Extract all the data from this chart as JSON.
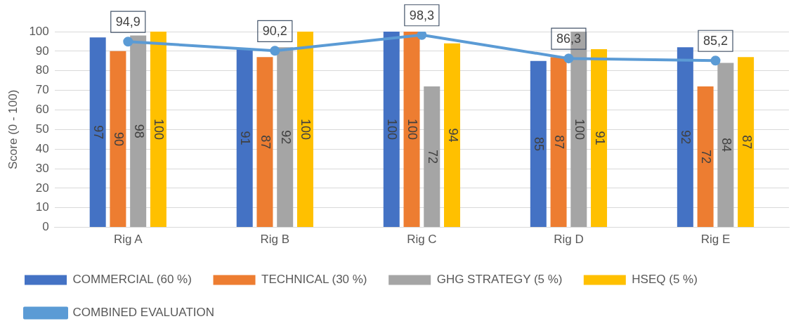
{
  "chart_data": {
    "type": "bar",
    "ylabel": "Score (0 - 100)",
    "categories": [
      "Rig A",
      "Rig B",
      "Rig C",
      "Rig D",
      "Rig E"
    ],
    "series": [
      {
        "name": "COMMERCIAL (60 %)",
        "color": "#4472c4",
        "values": [
          97,
          91,
          100,
          85,
          92
        ]
      },
      {
        "name": "TECHNICAL (30 %)",
        "color": "#ed7d31",
        "values": [
          90,
          87,
          100,
          87,
          72
        ]
      },
      {
        "name": "GHG STRATEGY (5 %)",
        "color": "#a5a5a5",
        "values": [
          98,
          92,
          72,
          100,
          84
        ]
      },
      {
        "name": "HSEQ (5 %)",
        "color": "#ffc000",
        "values": [
          100,
          100,
          94,
          91,
          87
        ]
      },
      {
        "name": "COMBINED EVALUATION",
        "type": "line",
        "color": "#5b9bd5",
        "values": [
          94.9,
          90.2,
          98.3,
          86.3,
          85.2
        ],
        "value_labels": [
          "94,9",
          "90,2",
          "98,3",
          "86,3",
          "85,2"
        ],
        "marker": "circle",
        "line_style": "solid"
      }
    ],
    "ylim": [
      0,
      100
    ],
    "yticks": [
      0,
      10,
      20,
      30,
      40,
      50,
      60,
      70,
      80,
      90,
      100
    ],
    "grid": "y",
    "legend": "bottom",
    "data_labels": true
  }
}
